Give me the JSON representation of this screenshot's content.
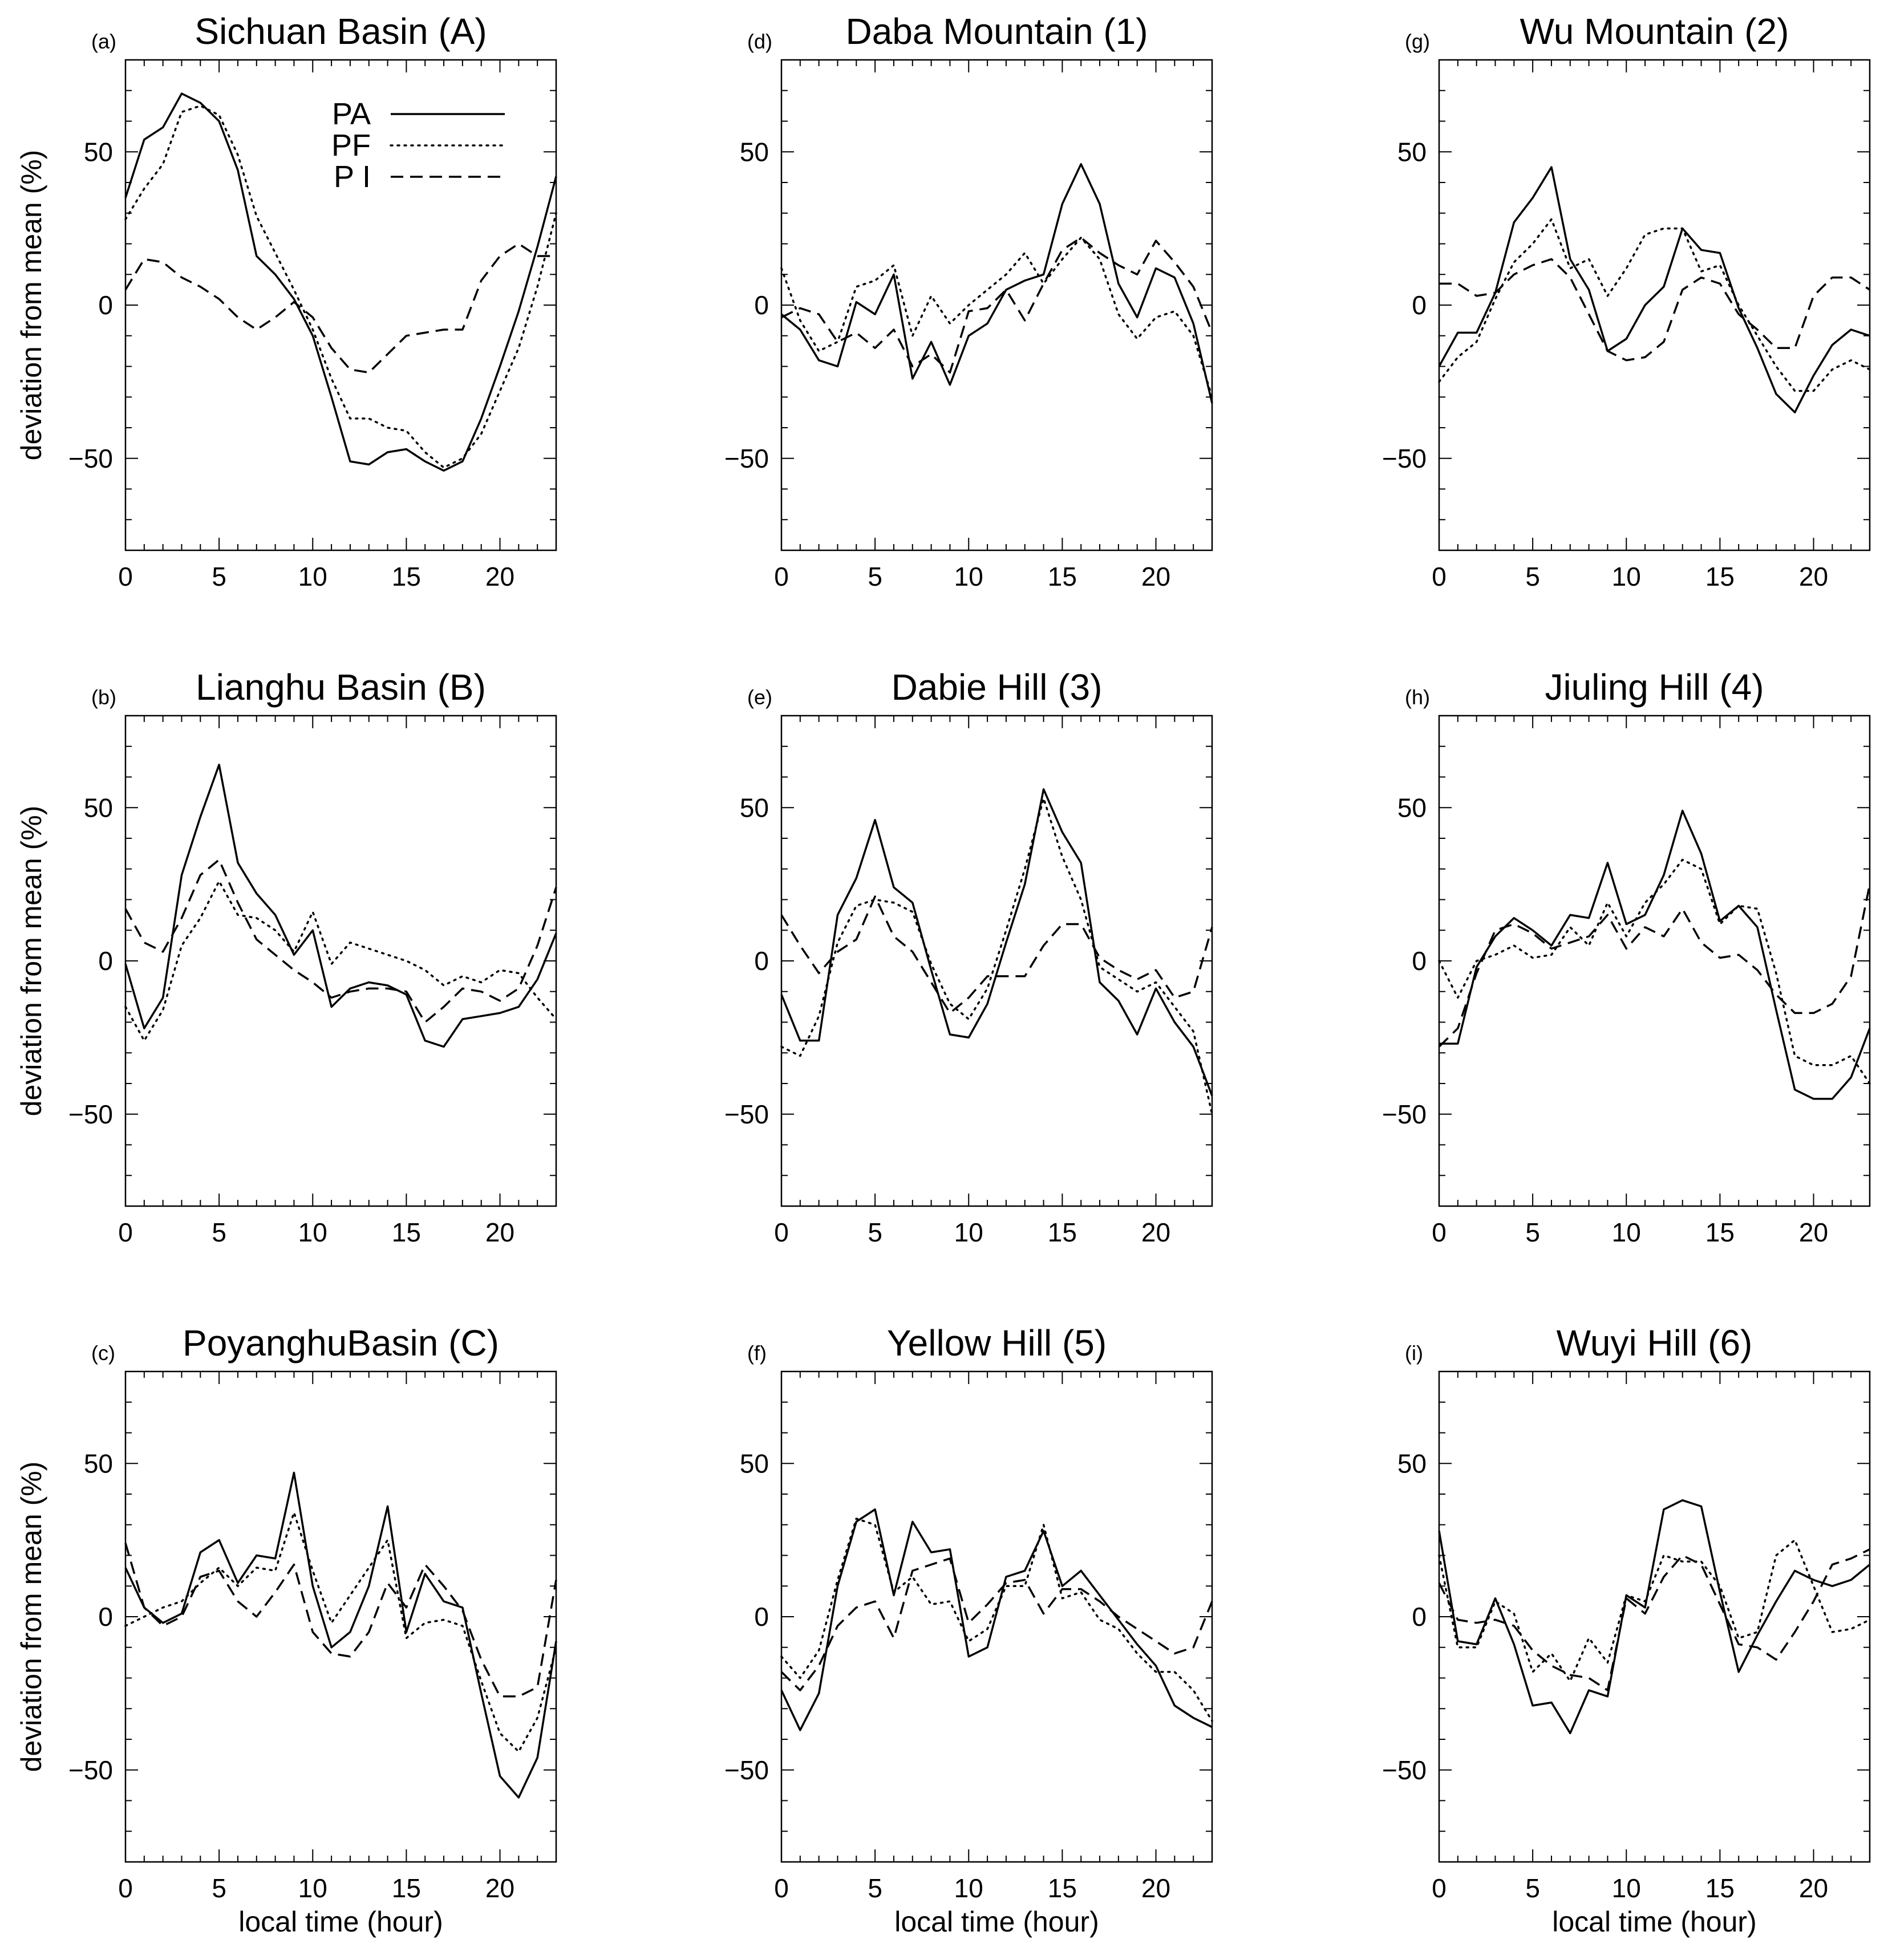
{
  "chart_data": [
    {
      "type": "line",
      "panel_label": "(a)",
      "title": "Sichuan Basin (A)",
      "xlabel": "",
      "ylabel": "deviation from mean (%)",
      "xlim": [
        0,
        23
      ],
      "ylim": [
        -80,
        80
      ],
      "xticks": [
        0,
        5,
        10,
        15,
        20
      ],
      "yticks": [
        -50,
        0,
        50
      ],
      "x": [
        0,
        1,
        2,
        3,
        4,
        5,
        6,
        7,
        8,
        9,
        10,
        11,
        12,
        13,
        14,
        15,
        16,
        17,
        18,
        19,
        20,
        21,
        22,
        23
      ],
      "series": [
        {
          "name": "PA",
          "style": "solid",
          "values": [
            35,
            54,
            58,
            69,
            66,
            60,
            44,
            16,
            10,
            2,
            -10,
            -30,
            -51,
            -52,
            -48,
            -47,
            -51,
            -54,
            -51,
            -37,
            -20,
            -2,
            19,
            42
          ]
        },
        {
          "name": "PF",
          "style": "dotted",
          "values": [
            28,
            38,
            46,
            63,
            65,
            62,
            49,
            29,
            17,
            5,
            -8,
            -24,
            -37,
            -37,
            -40,
            -41,
            -48,
            -53,
            -50,
            -42,
            -28,
            -14,
            6,
            30
          ]
        },
        {
          "name": "P I",
          "style": "dashed",
          "values": [
            5,
            15,
            14,
            9,
            6,
            2,
            -4,
            -8,
            -4,
            1,
            -4,
            -14,
            -21,
            -22,
            -16,
            -10,
            -9,
            -8,
            -8,
            8,
            16,
            20,
            16,
            16
          ]
        }
      ],
      "legend": {
        "position": "top-right",
        "entries": [
          "PA",
          "PF",
          "P I"
        ]
      }
    },
    {
      "type": "line",
      "panel_label": "(b)",
      "title": "Lianghu Basin (B)",
      "xlabel": "",
      "ylabel": "deviation from mean (%)",
      "xlim": [
        0,
        23
      ],
      "ylim": [
        -80,
        80
      ],
      "xticks": [
        0,
        5,
        10,
        15,
        20
      ],
      "yticks": [
        -50,
        0,
        50
      ],
      "x": [
        0,
        1,
        2,
        3,
        4,
        5,
        6,
        7,
        8,
        9,
        10,
        11,
        12,
        13,
        14,
        15,
        16,
        17,
        18,
        19,
        20,
        21,
        22,
        23
      ],
      "series": [
        {
          "name": "PA",
          "style": "solid",
          "values": [
            -1,
            -22,
            -12,
            28,
            47,
            64,
            32,
            22,
            15,
            2,
            10,
            -15,
            -9,
            -7,
            -8,
            -11,
            -26,
            -28,
            -19,
            -18,
            -17,
            -15,
            -6,
            9
          ]
        },
        {
          "name": "PF",
          "style": "dotted",
          "values": [
            -15,
            -26,
            -16,
            5,
            14,
            26,
            15,
            14,
            10,
            3,
            16,
            -1,
            6,
            4,
            2,
            0,
            -3,
            -8,
            -5,
            -7,
            -3,
            -4,
            -12,
            -19
          ]
        },
        {
          "name": "P I",
          "style": "dashed",
          "values": [
            17,
            6,
            3,
            14,
            28,
            33,
            19,
            7,
            2,
            -3,
            -7,
            -12,
            -10,
            -9,
            -9,
            -10,
            -20,
            -15,
            -9,
            -10,
            -13,
            -9,
            5,
            24
          ]
        }
      ]
    },
    {
      "type": "line",
      "panel_label": "(c)",
      "title": "PoyanghuBasin (C)",
      "xlabel": "local time (hour)",
      "ylabel": "deviation from mean (%)",
      "xlim": [
        0,
        23
      ],
      "ylim": [
        -80,
        80
      ],
      "xticks": [
        0,
        5,
        10,
        15,
        20
      ],
      "yticks": [
        -50,
        0,
        50
      ],
      "x": [
        0,
        1,
        2,
        3,
        4,
        5,
        6,
        7,
        8,
        9,
        10,
        11,
        12,
        13,
        14,
        15,
        16,
        17,
        18,
        19,
        20,
        21,
        22,
        23
      ],
      "series": [
        {
          "name": "PA",
          "style": "solid",
          "values": [
            16,
            3,
            -2,
            1,
            21,
            25,
            11,
            20,
            19,
            47,
            10,
            -10,
            -5,
            10,
            36,
            -5,
            14,
            5,
            3,
            -25,
            -52,
            -59,
            -46,
            -8
          ]
        },
        {
          "name": "PF",
          "style": "dotted",
          "values": [
            -3,
            0,
            3,
            5,
            11,
            16,
            10,
            16,
            15,
            34,
            15,
            -2,
            7,
            16,
            25,
            -7,
            -2,
            -1,
            -3,
            -21,
            -38,
            -44,
            -33,
            -10
          ]
        },
        {
          "name": "P I",
          "style": "dashed",
          "values": [
            24,
            3,
            -3,
            0,
            13,
            15,
            5,
            0,
            8,
            17,
            -5,
            -12,
            -13,
            -5,
            11,
            3,
            17,
            10,
            2,
            -14,
            -26,
            -26,
            -23,
            12
          ]
        }
      ]
    },
    {
      "type": "line",
      "panel_label": "(d)",
      "title": "Daba Mountain (1)",
      "xlabel": "",
      "ylabel": "",
      "xlim": [
        0,
        23
      ],
      "ylim": [
        -80,
        80
      ],
      "xticks": [
        0,
        5,
        10,
        15,
        20
      ],
      "yticks": [
        -50,
        0,
        50
      ],
      "x": [
        0,
        1,
        2,
        3,
        4,
        5,
        6,
        7,
        8,
        9,
        10,
        11,
        12,
        13,
        14,
        15,
        16,
        17,
        18,
        19,
        20,
        21,
        22,
        23
      ],
      "series": [
        {
          "name": "PA",
          "style": "solid",
          "values": [
            -3,
            -8,
            -18,
            -20,
            1,
            -3,
            10,
            -24,
            -12,
            -26,
            -10,
            -6,
            5,
            8,
            10,
            33,
            46,
            33,
            7,
            -4,
            12,
            9,
            -6,
            -32
          ]
        },
        {
          "name": "PF",
          "style": "dotted",
          "values": [
            12,
            -5,
            -15,
            -12,
            6,
            8,
            13,
            -10,
            3,
            -6,
            0,
            5,
            10,
            17,
            7,
            15,
            22,
            15,
            -3,
            -11,
            -4,
            -2,
            -10,
            -30
          ]
        },
        {
          "name": "P I",
          "style": "dashed",
          "values": [
            -4,
            -1,
            -3,
            -12,
            -9,
            -14,
            -8,
            -20,
            -16,
            -22,
            -2,
            -1,
            5,
            -5,
            7,
            18,
            22,
            17,
            13,
            10,
            21,
            14,
            6,
            -9
          ]
        }
      ]
    },
    {
      "type": "line",
      "panel_label": "(e)",
      "title": "Dabie Hill (3)",
      "xlabel": "",
      "ylabel": "",
      "xlim": [
        0,
        23
      ],
      "ylim": [
        -80,
        80
      ],
      "xticks": [
        0,
        5,
        10,
        15,
        20
      ],
      "yticks": [
        -50,
        0,
        50
      ],
      "x": [
        0,
        1,
        2,
        3,
        4,
        5,
        6,
        7,
        8,
        9,
        10,
        11,
        12,
        13,
        14,
        15,
        16,
        17,
        18,
        19,
        20,
        21,
        22,
        23
      ],
      "series": [
        {
          "name": "PA",
          "style": "solid",
          "values": [
            -11,
            -26,
            -26,
            15,
            27,
            46,
            24,
            19,
            -3,
            -24,
            -25,
            -14,
            6,
            25,
            56,
            42,
            32,
            -7,
            -13,
            -24,
            -9,
            -20,
            -28,
            -44
          ]
        },
        {
          "name": "PF",
          "style": "dotted",
          "values": [
            -28,
            -31,
            -18,
            6,
            18,
            20,
            19,
            16,
            -1,
            -14,
            -19,
            -9,
            10,
            30,
            53,
            34,
            20,
            -2,
            -6,
            -10,
            -7,
            -15,
            -23,
            -50
          ]
        },
        {
          "name": "P I",
          "style": "dashed",
          "values": [
            15,
            5,
            -4,
            3,
            7,
            21,
            8,
            3,
            -7,
            -17,
            -12,
            -5,
            -5,
            -5,
            5,
            12,
            12,
            1,
            -3,
            -6,
            -3,
            -12,
            -10,
            11
          ]
        }
      ]
    },
    {
      "type": "line",
      "panel_label": "(f)",
      "title": "Yellow Hill (5)",
      "xlabel": "local time (hour)",
      "ylabel": "",
      "xlim": [
        0,
        23
      ],
      "ylim": [
        -80,
        80
      ],
      "xticks": [
        0,
        5,
        10,
        15,
        20
      ],
      "yticks": [
        -50,
        0,
        50
      ],
      "x": [
        0,
        1,
        2,
        3,
        4,
        5,
        6,
        7,
        8,
        9,
        10,
        11,
        12,
        13,
        14,
        15,
        16,
        17,
        18,
        19,
        20,
        21,
        22,
        23
      ],
      "series": [
        {
          "name": "PA",
          "style": "solid",
          "values": [
            -24,
            -37,
            -25,
            10,
            31,
            35,
            7,
            31,
            21,
            22,
            -13,
            -10,
            13,
            15,
            28,
            10,
            15,
            7,
            -1,
            -9,
            -16,
            -29,
            -33,
            -36
          ]
        },
        {
          "name": "PF",
          "style": "dotted",
          "values": [
            -13,
            -20,
            -11,
            12,
            32,
            30,
            8,
            13,
            4,
            5,
            -8,
            -4,
            10,
            10,
            30,
            6,
            8,
            -1,
            -4,
            -12,
            -18,
            -18,
            -24,
            -34
          ]
        },
        {
          "name": "P I",
          "style": "dashed",
          "values": [
            -18,
            -24,
            -16,
            -3,
            3,
            5,
            -7,
            15,
            17,
            19,
            -2,
            4,
            11,
            12,
            1,
            9,
            9,
            5,
            0,
            -4,
            -8,
            -12,
            -10,
            5
          ]
        }
      ]
    },
    {
      "type": "line",
      "panel_label": "(g)",
      "title": "Wu Mountain (2)",
      "xlabel": "",
      "ylabel": "",
      "xlim": [
        0,
        23
      ],
      "ylim": [
        -80,
        80
      ],
      "xticks": [
        0,
        5,
        10,
        15,
        20
      ],
      "yticks": [
        -50,
        0,
        50
      ],
      "x": [
        0,
        1,
        2,
        3,
        4,
        5,
        6,
        7,
        8,
        9,
        10,
        11,
        12,
        13,
        14,
        15,
        16,
        17,
        18,
        19,
        20,
        21,
        22,
        23
      ],
      "series": [
        {
          "name": "PA",
          "style": "solid",
          "values": [
            -20,
            -9,
            -9,
            4,
            27,
            35,
            45,
            15,
            5,
            -15,
            -11,
            0,
            6,
            25,
            18,
            17,
            -1,
            -14,
            -29,
            -35,
            -23,
            -13,
            -8,
            -10
          ]
        },
        {
          "name": "PF",
          "style": "dotted",
          "values": [
            -25,
            -17,
            -12,
            2,
            14,
            20,
            28,
            12,
            15,
            3,
            12,
            23,
            25,
            25,
            11,
            13,
            0,
            -10,
            -20,
            -28,
            -28,
            -21,
            -18,
            -21
          ]
        },
        {
          "name": "P I",
          "style": "dashed",
          "values": [
            7,
            7,
            3,
            4,
            10,
            13,
            15,
            9,
            -3,
            -15,
            -18,
            -17,
            -12,
            5,
            9,
            7,
            -3,
            -8,
            -14,
            -14,
            3,
            9,
            9,
            5
          ]
        }
      ]
    },
    {
      "type": "line",
      "panel_label": "(h)",
      "title": "Jiuling Hill (4)",
      "xlabel": "",
      "ylabel": "",
      "xlim": [
        0,
        23
      ],
      "ylim": [
        -80,
        80
      ],
      "xticks": [
        0,
        5,
        10,
        15,
        20
      ],
      "yticks": [
        -50,
        0,
        50
      ],
      "x": [
        0,
        1,
        2,
        3,
        4,
        5,
        6,
        7,
        8,
        9,
        10,
        11,
        12,
        13,
        14,
        15,
        16,
        17,
        18,
        19,
        20,
        21,
        22,
        23
      ],
      "series": [
        {
          "name": "PA",
          "style": "solid",
          "values": [
            -27,
            -27,
            -2,
            8,
            14,
            10,
            5,
            15,
            14,
            32,
            12,
            15,
            28,
            49,
            35,
            13,
            18,
            11,
            -16,
            -42,
            -45,
            -45,
            -38,
            -22
          ]
        },
        {
          "name": "PF",
          "style": "dotted",
          "values": [
            0,
            -12,
            0,
            2,
            5,
            1,
            2,
            11,
            5,
            19,
            8,
            19,
            25,
            33,
            30,
            12,
            18,
            17,
            -4,
            -31,
            -34,
            -34,
            -31,
            -40
          ]
        },
        {
          "name": "P I",
          "style": "dashed",
          "values": [
            -28,
            -22,
            -4,
            10,
            12,
            9,
            4,
            6,
            8,
            15,
            4,
            11,
            8,
            17,
            6,
            1,
            2,
            -3,
            -11,
            -17,
            -17,
            -14,
            -5,
            25
          ]
        }
      ]
    },
    {
      "type": "line",
      "panel_label": "(i)",
      "title": "Wuyi Hill (6)",
      "xlabel": "local time (hour)",
      "ylabel": "",
      "xlim": [
        0,
        23
      ],
      "ylim": [
        -80,
        80
      ],
      "xticks": [
        0,
        5,
        10,
        15,
        20
      ],
      "yticks": [
        -50,
        0,
        50
      ],
      "x": [
        0,
        1,
        2,
        3,
        4,
        5,
        6,
        7,
        8,
        9,
        10,
        11,
        12,
        13,
        14,
        15,
        16,
        17,
        18,
        19,
        20,
        21,
        22,
        23
      ],
      "series": [
        {
          "name": "PA",
          "style": "solid",
          "values": [
            28,
            -8,
            -9,
            6,
            -9,
            -29,
            -28,
            -38,
            -24,
            -26,
            7,
            3,
            35,
            38,
            36,
            8,
            -18,
            -6,
            5,
            15,
            12,
            10,
            12,
            17
          ]
        },
        {
          "name": "PF",
          "style": "dotted",
          "values": [
            20,
            -10,
            -10,
            5,
            1,
            -18,
            -12,
            -21,
            -7,
            -15,
            7,
            5,
            20,
            18,
            18,
            10,
            -7,
            -5,
            20,
            25,
            10,
            -5,
            -4,
            -1
          ]
        },
        {
          "name": "P I",
          "style": "dashed",
          "values": [
            11,
            -1,
            -2,
            -1,
            -3,
            -11,
            -16,
            -19,
            -20,
            -24,
            6,
            1,
            13,
            20,
            17,
            4,
            -9,
            -10,
            -14,
            -5,
            5,
            17,
            19,
            22
          ]
        }
      ]
    }
  ]
}
